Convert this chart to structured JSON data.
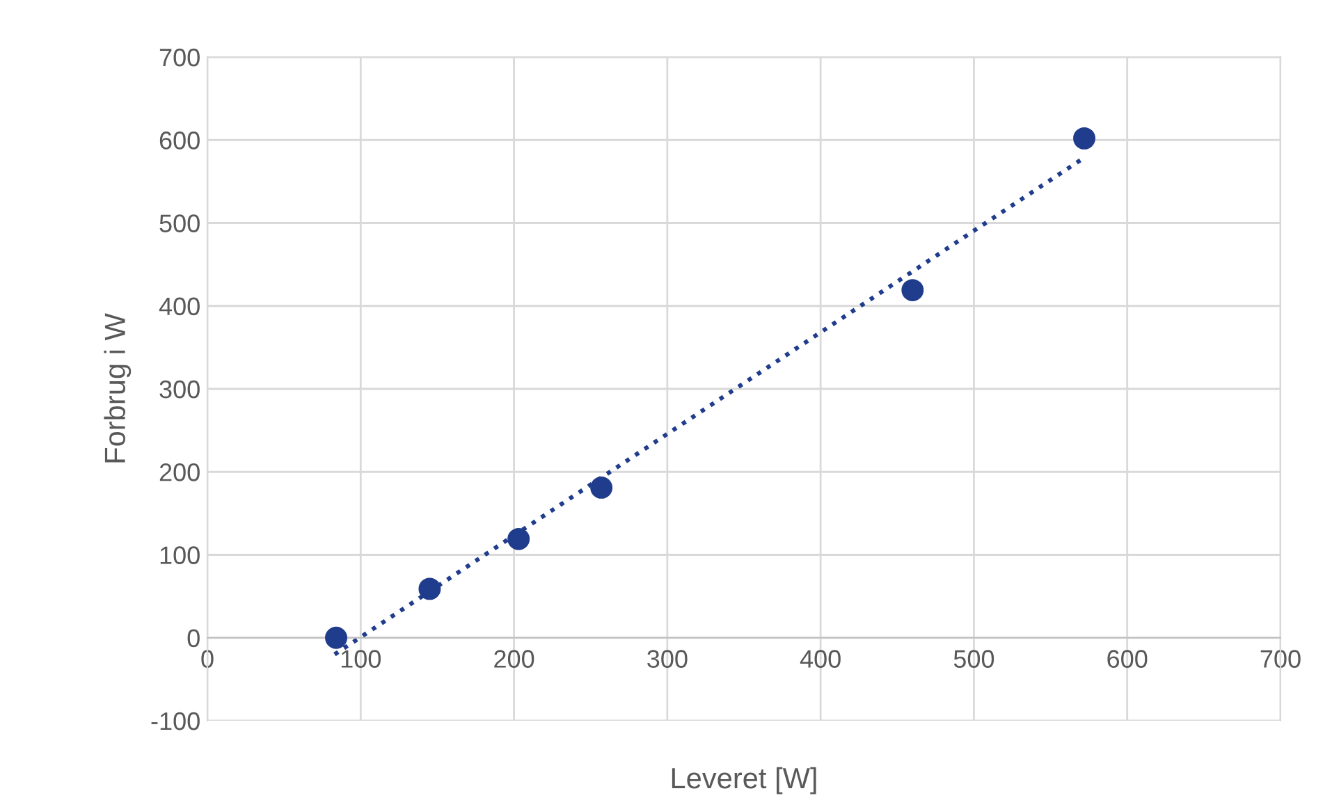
{
  "chart_data": {
    "type": "scatter",
    "xlabel": "Leveret [W]",
    "ylabel": "Forbrug i W",
    "xlim": [
      0,
      700
    ],
    "ylim": [
      -100,
      700
    ],
    "xticks": [
      0,
      100,
      200,
      300,
      400,
      500,
      600,
      700
    ],
    "yticks": [
      -100,
      0,
      100,
      200,
      300,
      400,
      500,
      600,
      700
    ],
    "grid": true,
    "series": [
      {
        "marker": "circle",
        "color": "#203c8c",
        "x": [
          84,
          145,
          203,
          257,
          460,
          572
        ],
        "values": [
          0,
          59,
          119,
          181,
          419,
          602
        ]
      },
      {
        "type": "line",
        "color": "#203c8c",
        "line_style": "dotted",
        "marker": "none",
        "x": [
          83,
          573
        ],
        "values": [
          -20,
          580
        ]
      }
    ]
  }
}
